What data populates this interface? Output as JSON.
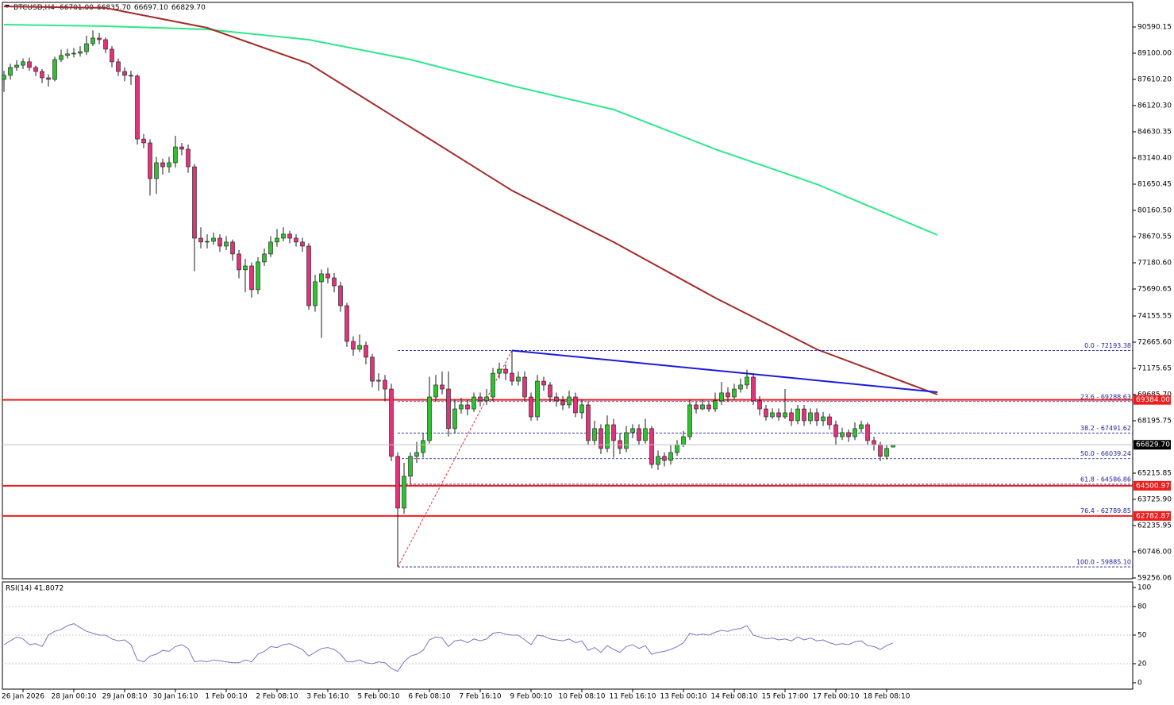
{
  "chart_data": [
    {
      "type": "candlestick",
      "title": "BTCUSD,H4",
      "header_values": [
        "66701.00",
        "66835.70",
        "66697.10",
        "66829.70"
      ],
      "categories": [
        null,
        null,
        null,
        "26 Jan 2026",
        null,
        null,
        null,
        null,
        null,
        null,
        null,
        "28 Jan 00:10",
        null,
        null,
        null,
        null,
        null,
        null,
        null,
        "29 Jan 08:10",
        null,
        null,
        null,
        null,
        null,
        null,
        null,
        "30 Jan 16:10",
        null,
        null,
        null,
        null,
        null,
        null,
        null,
        "1 Feb 00:10",
        null,
        null,
        null,
        null,
        null,
        null,
        null,
        "2 Feb 08:10",
        null,
        null,
        null,
        null,
        null,
        null,
        null,
        "3 Feb 16:10",
        null,
        null,
        null,
        null,
        null,
        null,
        null,
        "5 Feb 00:10",
        null,
        null,
        null,
        null,
        null,
        null,
        null,
        "6 Feb 08:10",
        null,
        null,
        null,
        null,
        null,
        null,
        null,
        "7 Feb 16:10",
        null,
        null,
        null,
        null,
        null,
        null,
        null,
        "9 Feb 00:10",
        null,
        null,
        null,
        null,
        null,
        null,
        null,
        "10 Feb 08:10",
        null,
        null,
        null,
        null,
        null,
        null,
        null,
        "11 Feb 16:10",
        null,
        null,
        null,
        null,
        null,
        null,
        null,
        "13 Feb 00:10",
        null,
        null,
        null,
        null,
        null,
        null,
        null,
        "14 Feb 08:10",
        null,
        null,
        null,
        null,
        null,
        null,
        null,
        "15 Feb 17:00",
        null,
        null,
        null,
        null,
        null,
        null,
        null,
        "17 Feb 00:10",
        null,
        null,
        null,
        null,
        null,
        null,
        null,
        "18 Feb 08:10",
        null
      ],
      "open": [
        87610,
        87840,
        88290,
        88420,
        88610,
        88290,
        88060,
        87700,
        87610,
        88740,
        88970,
        89060,
        89100,
        89190,
        89640,
        89960,
        89870,
        89330,
        88610,
        88060,
        87840,
        87800,
        84220,
        84000,
        81970,
        82870,
        82640,
        82870,
        83770,
        83640,
        82640,
        78580,
        78360,
        78400,
        78580,
        78130,
        78360,
        77680,
        76780,
        77000,
        75650,
        77230,
        77680,
        78360,
        78580,
        78810,
        78580,
        78360,
        78130,
        74740,
        76100,
        76550,
        76320,
        75870,
        74740,
        72710,
        72260,
        72480,
        71810,
        70450,
        70500,
        70000,
        66170,
        63230,
        65040,
        66170,
        66390,
        67070,
        69550,
        70230,
        70000,
        67750,
        68870,
        69100,
        68870,
        69550,
        69330,
        69550,
        70900,
        71130,
        70900,
        70450,
        70680,
        69550,
        68420,
        70450,
        70230,
        69550,
        69330,
        69100,
        69550,
        68650,
        69100,
        67070,
        67750,
        66620,
        67970,
        67070,
        66620,
        67520,
        67750,
        67070,
        67750,
        65710,
        66170,
        65940,
        66390,
        66840,
        67290,
        69100,
        68870,
        69100,
        68870,
        69330,
        69780,
        69550,
        70000,
        70230,
        70680,
        69330,
        68870,
        68420,
        68650,
        68420,
        68650,
        68200,
        68870,
        68200,
        68650,
        68200,
        68420,
        67970,
        67290,
        67520,
        67290,
        67750,
        67970,
        67070,
        66840,
        66170,
        66701
      ],
      "high": [
        88100,
        88500,
        88700,
        88800,
        88850,
        88400,
        88200,
        87900,
        88900,
        89300,
        89350,
        89400,
        89500,
        90100,
        90400,
        90250,
        90000,
        89500,
        88800,
        88300,
        88100,
        87900,
        84500,
        84200,
        83200,
        83100,
        83200,
        84400,
        84000,
        83900,
        82800,
        79200,
        78800,
        78900,
        78800,
        78700,
        78500,
        77900,
        77400,
        77200,
        77500,
        78000,
        78700,
        79100,
        79200,
        79000,
        78800,
        78600,
        78300,
        76500,
        76800,
        76900,
        76600,
        76100,
        74900,
        73000,
        73100,
        72700,
        72000,
        70900,
        70800,
        70300,
        66400,
        65800,
        66400,
        67000,
        67500,
        70700,
        70800,
        71000,
        71000,
        69400,
        69500,
        69400,
        69800,
        69800,
        70000,
        71200,
        71500,
        71400,
        72193.38,
        71000,
        71000,
        69800,
        70800,
        70700,
        70400,
        69800,
        69600,
        69900,
        69800,
        69400,
        69300,
        68200,
        68000,
        68500,
        68300,
        67500,
        67900,
        68000,
        68000,
        68300,
        67900,
        66500,
        66400,
        66800,
        67100,
        67600,
        69400,
        69300,
        69400,
        69300,
        69800,
        70400,
        70100,
        70300,
        70600,
        71100,
        70900,
        69600,
        69100,
        68900,
        68900,
        70000,
        68900,
        69100,
        69100,
        68900,
        68900,
        68700,
        68600,
        68200,
        67800,
        67700,
        68100,
        68200,
        68100,
        67300,
        67000,
        66800,
        66835.7
      ],
      "low": [
        86900,
        87600,
        88100,
        88200,
        88100,
        87800,
        87400,
        87200,
        87500,
        88600,
        88800,
        88850,
        88900,
        89000,
        89500,
        89600,
        89100,
        88300,
        87800,
        87500,
        87300,
        83900,
        83700,
        81000,
        81100,
        82200,
        82300,
        82600,
        83300,
        82300,
        76700,
        78000,
        78000,
        78200,
        77800,
        77900,
        77300,
        76300,
        75500,
        75200,
        75400,
        77000,
        77500,
        78100,
        78400,
        78300,
        78100,
        77800,
        74500,
        74400,
        72900,
        76000,
        75500,
        74400,
        72400,
        71900,
        72100,
        71400,
        70100,
        69900,
        69300,
        65900,
        59885.1,
        62900,
        64600,
        65800,
        66100,
        66900,
        69300,
        69700,
        67300,
        67500,
        68600,
        68500,
        68700,
        69000,
        69100,
        69300,
        70600,
        70500,
        70200,
        70200,
        69300,
        68200,
        68200,
        69900,
        69300,
        69000,
        68800,
        68900,
        68400,
        68300,
        66800,
        66800,
        66300,
        66400,
        66100,
        66300,
        66400,
        67200,
        66800,
        66900,
        65500,
        65400,
        65600,
        65700,
        66200,
        66700,
        67100,
        68600,
        68800,
        68700,
        68700,
        69100,
        69300,
        69400,
        69800,
        70000,
        69100,
        68500,
        68200,
        68300,
        68200,
        68300,
        67900,
        68000,
        67900,
        68000,
        67900,
        67900,
        67700,
        66800,
        67100,
        67000,
        67100,
        67500,
        66800,
        66500,
        65900,
        66000,
        66697.1
      ],
      "close": [
        87840,
        88290,
        88420,
        88610,
        88290,
        88060,
        87700,
        87610,
        88740,
        88970,
        89060,
        89100,
        89190,
        89640,
        89960,
        89870,
        89330,
        88610,
        88060,
        87840,
        87800,
        84220,
        84000,
        81970,
        82870,
        82640,
        82870,
        83770,
        83640,
        82640,
        78580,
        78360,
        78400,
        78580,
        78130,
        78360,
        77680,
        76780,
        77000,
        75650,
        77230,
        77680,
        78360,
        78580,
        78810,
        78580,
        78360,
        78130,
        74740,
        76100,
        76550,
        76320,
        75870,
        74740,
        72710,
        72260,
        72480,
        71810,
        70450,
        70500,
        70000,
        66170,
        63230,
        65040,
        66170,
        66390,
        67070,
        69550,
        70230,
        70000,
        67750,
        68870,
        69100,
        68870,
        69550,
        69330,
        69550,
        70900,
        71130,
        70900,
        70450,
        70680,
        69550,
        68420,
        70450,
        70230,
        69550,
        69330,
        69100,
        69550,
        68650,
        69100,
        67070,
        67750,
        66620,
        67970,
        67070,
        66620,
        67520,
        67750,
        67070,
        67750,
        65710,
        66170,
        65940,
        66390,
        66840,
        67290,
        69100,
        68870,
        69100,
        68870,
        69330,
        69780,
        69550,
        70000,
        70230,
        70680,
        69330,
        68870,
        68420,
        68650,
        68420,
        68650,
        68200,
        68870,
        68200,
        68650,
        68200,
        68420,
        67970,
        67290,
        67520,
        67290,
        67750,
        67970,
        67070,
        66840,
        66170,
        66620,
        66829.7
      ],
      "bull_color": "#2fc12f",
      "bear_color": "#e0337a",
      "wick_color": "#1a1a1a",
      "xlim": [
        -0.25,
        177.75
      ],
      "ylim": [
        59210,
        91990
      ],
      "yticks": [
        90590.15,
        {
          "value": 89100,
          "label": "89100.00"
        },
        {
          "value": 87610.2,
          "label": "87610.20"
        },
        {
          "value": 86120.3,
          "label": "86120.30"
        },
        84630.35,
        {
          "value": 83140.4,
          "label": "83140.40"
        },
        81650.45,
        {
          "value": 80160.5,
          "label": "80160.50"
        },
        78670.55,
        {
          "value": 77180.6,
          "label": "77180.60"
        },
        75690.65,
        74155.55,
        {
          "value": 72665.6,
          "label": "72665.60"
        },
        71175.65,
        {
          "value": 69685.7,
          "label": "69685.70"
        },
        68195.75,
        65215.85,
        {
          "value": 63725.9,
          "label": "63725.90"
        },
        62235.95,
        {
          "value": 60746,
          "label": "60746.00"
        },
        59256.06
      ],
      "moving_averages": [
        {
          "color": "#2ee88a",
          "x": [
            0,
            16,
            32,
            48,
            64,
            80,
            96,
            112,
            128,
            147
          ],
          "values": [
            90725,
            90635,
            90455,
            89870,
            88740,
            87250,
            85895,
            83640,
            81650,
            78760
          ]
        },
        {
          "color": "#a52a2a",
          "x": [
            0,
            16,
            32,
            48,
            64,
            80,
            96,
            112,
            128,
            147
          ],
          "values": [
            91760,
            91675,
            90545,
            88510,
            84900,
            81290,
            78360,
            75190,
            72260,
            69685
          ]
        }
      ],
      "trendline": {
        "color": "#1a1adc",
        "x": [
          80,
          147
        ],
        "values": [
          72193.38,
          69820
        ]
      },
      "fib": {
        "color": "#1c1c9c",
        "line_color": "#e03030",
        "x": [
          62,
          80
        ],
        "levels": [
          {
            "label": "0.0 - 72193.38",
            "value": 72193.38
          },
          {
            "label": "23.6 - 69288.63",
            "value": 69288.63
          },
          {
            "label": "38.2 - 67491.62",
            "value": 67491.62
          },
          {
            "label": "50.0 - 66039.24",
            "value": 66039.24
          },
          {
            "label": "61.8 - 64586.86",
            "value": 64586.86
          },
          {
            "label": "76.4 - 62789.85",
            "value": 62789.85
          },
          {
            "label": "100.0 - 59885.10",
            "value": 59885.1
          }
        ]
      },
      "hlines": [
        {
          "value": 69384,
          "label": "69384.00",
          "color": "#ee1c1c"
        },
        {
          "value": 64500.97,
          "label": "64500.97",
          "color": "#ee1c1c"
        },
        {
          "value": 62782.87,
          "label": "62782.87",
          "color": "#ee1c1c"
        }
      ],
      "current_label": "66829.70",
      "current_color": "#c0c0c0"
    },
    {
      "type": "line",
      "title": "RSI(14) 41.8072",
      "series": [
        {
          "color": "#8470c0",
          "values": [
            40,
            44,
            48,
            46,
            40,
            41,
            38,
            50,
            54,
            56,
            60,
            62,
            58,
            54,
            52,
            50,
            50,
            46,
            44,
            45,
            40,
            24,
            22,
            28,
            30,
            34,
            33,
            38,
            40,
            36,
            22,
            23,
            22,
            24,
            23,
            22,
            21,
            21,
            24,
            22,
            30,
            33,
            38,
            37,
            40,
            41,
            38,
            35,
            28,
            32,
            36,
            37,
            35,
            30,
            22,
            22,
            24,
            21,
            20,
            22,
            21,
            15,
            12,
            22,
            28,
            30,
            34,
            45,
            48,
            47,
            38,
            44,
            45,
            42,
            46,
            44,
            46,
            52,
            53,
            51,
            50,
            50,
            45,
            40,
            50,
            49,
            46,
            45,
            44,
            46,
            42,
            44,
            34,
            37,
            32,
            39,
            35,
            32,
            38,
            40,
            36,
            39,
            30,
            32,
            33,
            35,
            38,
            42,
            52,
            50,
            51,
            50,
            53,
            55,
            54,
            56,
            57,
            60,
            50,
            48,
            46,
            47,
            45,
            46,
            44,
            48,
            45,
            47,
            44,
            45,
            42,
            40,
            41,
            40,
            43,
            44,
            39,
            38,
            35,
            39,
            41.8072
          ]
        }
      ],
      "ylim": [
        -6.7,
        105.8
      ],
      "yticks": [
        100,
        80,
        50,
        20,
        0
      ],
      "levels": [
        80,
        50,
        20
      ],
      "level_color": "#c8c8c8"
    }
  ]
}
